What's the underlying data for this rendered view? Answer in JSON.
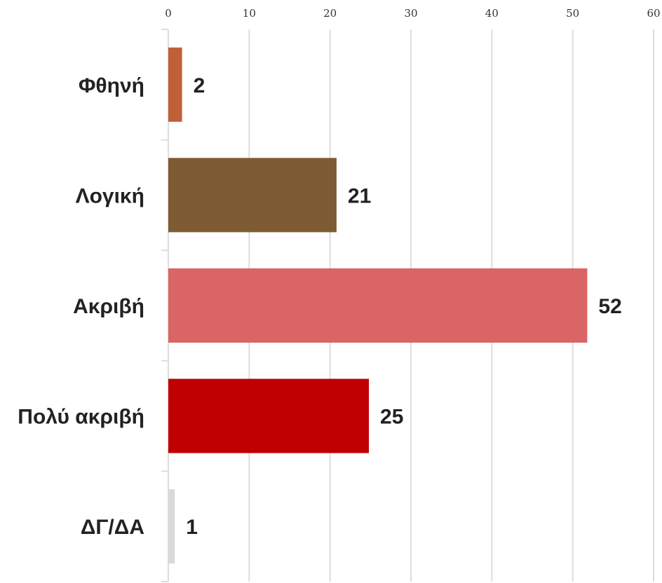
{
  "chart_data": {
    "type": "bar",
    "orientation": "horizontal",
    "categories": [
      "Φθηνή",
      "Λογική",
      "Ακριβή",
      "Πολύ ακριβή",
      "ΔΓ/ΔΑ"
    ],
    "values": [
      2,
      21,
      52,
      25,
      1
    ],
    "bar_values": [
      1.7,
      20.8,
      51.8,
      24.8,
      0.8
    ],
    "value_labels": [
      "2",
      "21",
      "52",
      "25",
      "1"
    ],
    "colors": [
      "#bf6038",
      "#7f5b33",
      "#da6566",
      "#c00000",
      "#d9d9d9"
    ],
    "xlim": [
      0,
      60
    ],
    "x_ticks": [
      "0",
      "10",
      "20",
      "30",
      "40",
      "50",
      "60"
    ],
    "x_axis_position": "top",
    "grid": true,
    "title": "",
    "xlabel": "",
    "ylabel": ""
  }
}
